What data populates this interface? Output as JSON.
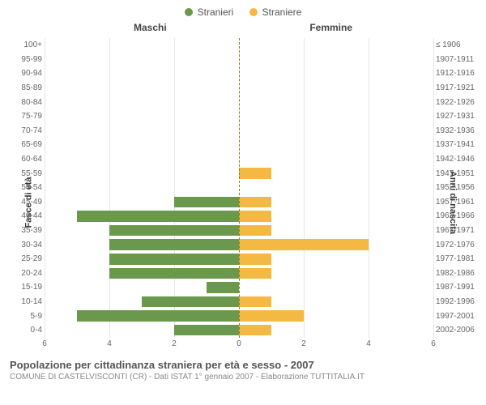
{
  "legend": {
    "male": {
      "label": "Stranieri",
      "color": "#6a994e"
    },
    "female": {
      "label": "Straniere",
      "color": "#f4b942"
    }
  },
  "headers": {
    "left": "Maschi",
    "right": "Femmine"
  },
  "axis_labels": {
    "left": "Fasce di età",
    "right": "Anni di nascita"
  },
  "xmax": 6,
  "xticks": [
    6,
    4,
    2,
    0,
    2,
    4,
    6
  ],
  "bar_colors": {
    "male": "#6a994e",
    "female": "#f4b942"
  },
  "grid_color": "#e6e6e6",
  "centerline_color": "#8a7a2b",
  "rows": [
    {
      "age": "100+",
      "birth": "≤ 1906",
      "m": 0,
      "f": 0
    },
    {
      "age": "95-99",
      "birth": "1907-1911",
      "m": 0,
      "f": 0
    },
    {
      "age": "90-94",
      "birth": "1912-1916",
      "m": 0,
      "f": 0
    },
    {
      "age": "85-89",
      "birth": "1917-1921",
      "m": 0,
      "f": 0
    },
    {
      "age": "80-84",
      "birth": "1922-1926",
      "m": 0,
      "f": 0
    },
    {
      "age": "75-79",
      "birth": "1927-1931",
      "m": 0,
      "f": 0
    },
    {
      "age": "70-74",
      "birth": "1932-1936",
      "m": 0,
      "f": 0
    },
    {
      "age": "65-69",
      "birth": "1937-1941",
      "m": 0,
      "f": 0
    },
    {
      "age": "60-64",
      "birth": "1942-1946",
      "m": 0,
      "f": 0
    },
    {
      "age": "55-59",
      "birth": "1947-1951",
      "m": 0,
      "f": 1
    },
    {
      "age": "50-54",
      "birth": "1952-1956",
      "m": 0,
      "f": 0
    },
    {
      "age": "45-49",
      "birth": "1957-1961",
      "m": 2,
      "f": 1
    },
    {
      "age": "40-44",
      "birth": "1962-1966",
      "m": 5,
      "f": 1
    },
    {
      "age": "35-39",
      "birth": "1967-1971",
      "m": 4,
      "f": 1
    },
    {
      "age": "30-34",
      "birth": "1972-1976",
      "m": 4,
      "f": 4
    },
    {
      "age": "25-29",
      "birth": "1977-1981",
      "m": 4,
      "f": 1
    },
    {
      "age": "20-24",
      "birth": "1982-1986",
      "m": 4,
      "f": 1
    },
    {
      "age": "15-19",
      "birth": "1987-1991",
      "m": 1,
      "f": 0
    },
    {
      "age": "10-14",
      "birth": "1992-1996",
      "m": 3,
      "f": 1
    },
    {
      "age": "5-9",
      "birth": "1997-2001",
      "m": 5,
      "f": 2
    },
    {
      "age": "0-4",
      "birth": "2002-2006",
      "m": 2,
      "f": 1
    }
  ],
  "title": "Popolazione per cittadinanza straniera per età e sesso - 2007",
  "subtitle": "COMUNE DI CASTELVISCONTI (CR) - Dati ISTAT 1° gennaio 2007 - Elaborazione TUTTITALIA.IT"
}
